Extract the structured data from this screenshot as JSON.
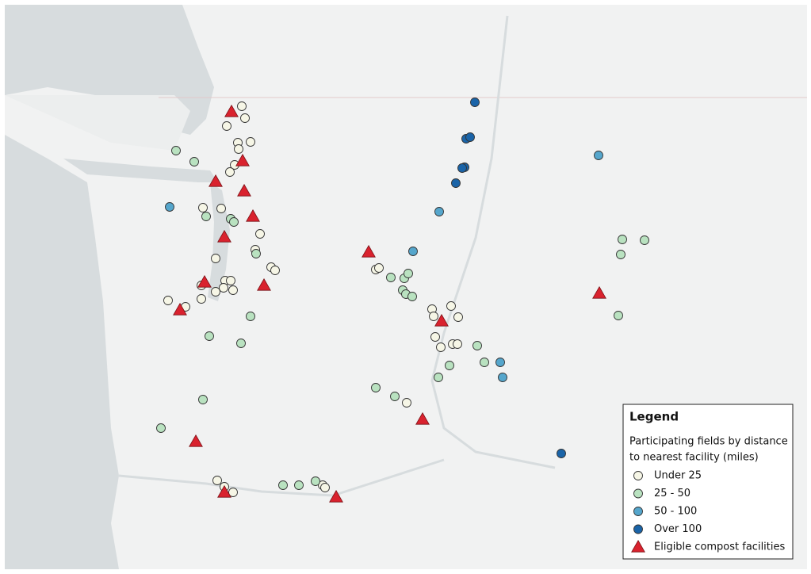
{
  "legend": {
    "title": "Legend",
    "subtitle": [
      "Participating fields by distance",
      "to nearest facility (miles)"
    ],
    "items": [
      {
        "label": "Under 25",
        "color": "#f6f6e6",
        "shape": "circle"
      },
      {
        "label": "25 - 50",
        "color": "#b9e2c0",
        "shape": "circle"
      },
      {
        "label": "50 - 100",
        "color": "#55a6cc",
        "shape": "circle"
      },
      {
        "label": "Over 100",
        "color": "#1a64a8",
        "shape": "circle"
      },
      {
        "label": "Eligible compost facilities",
        "color": "#d9222e",
        "shape": "triangle"
      }
    ]
  }
}
